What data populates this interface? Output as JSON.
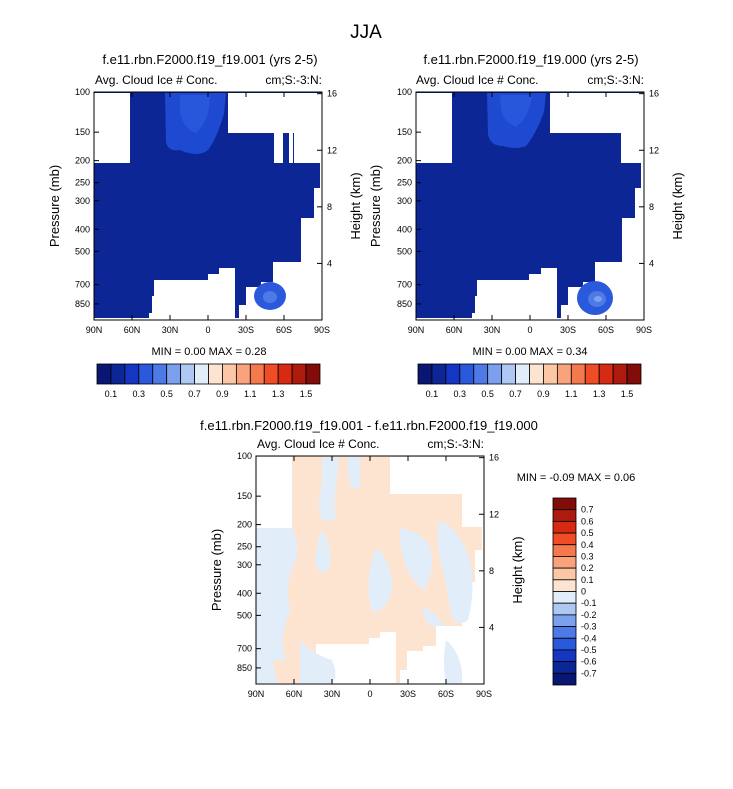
{
  "page": {
    "title": "JJA"
  },
  "colors": {
    "background": "#ffffff",
    "missing": "#ffffff",
    "frame": "#000000",
    "abs_scale": [
      "#0a1673",
      "#0c2696",
      "#1436c2",
      "#2a59dc",
      "#4d7ae6",
      "#7ba0ee",
      "#afc8f3",
      "#e2edfa",
      "#fde4d0",
      "#fbc7a7",
      "#f8a37c",
      "#f47a4d",
      "#ee4d26",
      "#d62b12",
      "#ad1a0e",
      "#820c08"
    ],
    "diff_scale": [
      "#0a1673",
      "#0c2696",
      "#1436c2",
      "#2a59dc",
      "#4d7ae6",
      "#7ba0ee",
      "#afc8f3",
      "#e2edfa",
      "#fde4d0",
      "#fbc7a7",
      "#f8a37c",
      "#f47a4d",
      "#ee4d26",
      "#d62b12",
      "#ad1a0e",
      "#820c08"
    ]
  },
  "chart_data": [
    {
      "id": "panel-left",
      "type": "heatmap",
      "title": "f.e11.rbn.F2000.f19_f19.001 (yrs 2-5)",
      "subtitle_left": "Avg. Cloud Ice # Conc.",
      "subtitle_right": "cm;S:-3:N:",
      "xlabel": "",
      "ylabel": "Pressure (mb)",
      "ylabel_right": "Height (km)",
      "x_ticks": [
        "90N",
        "60N",
        "30N",
        "0",
        "30S",
        "60S",
        "90S"
      ],
      "x_tick_values": [
        90,
        60,
        30,
        0,
        -30,
        -60,
        -90
      ],
      "y_ticks": [
        "100",
        "150",
        "200",
        "250",
        "300",
        "400",
        "500",
        "700",
        "850"
      ],
      "y_tick_values": [
        100,
        150,
        200,
        250,
        300,
        400,
        500,
        700,
        850
      ],
      "y_right_ticks": [
        "16",
        "12",
        "8",
        "4"
      ],
      "y_right_values": [
        16,
        12,
        8,
        4
      ],
      "ylim": [
        100,
        1000
      ],
      "xlim": [
        90,
        -90
      ],
      "y_scale": "log",
      "stats": "MIN =  0.00  MAX =  0.28",
      "min": 0.0,
      "max": 0.28,
      "dominant_level": 0.1,
      "features": [
        {
          "name": "tropical-upper-max",
          "lat": 20,
          "p": 125,
          "value": 0.2
        },
        {
          "name": "southern-midlat-low-max",
          "lat": -54,
          "p": 730,
          "value": 0.28
        }
      ]
    },
    {
      "id": "panel-right",
      "type": "heatmap",
      "title": "f.e11.rbn.F2000.f19_f19.000 (yrs 2-5)",
      "subtitle_left": "Avg. Cloud Ice # Conc.",
      "subtitle_right": "cm;S:-3:N:",
      "xlabel": "",
      "ylabel": "Pressure (mb)",
      "ylabel_right": "Height (km)",
      "x_ticks": [
        "90N",
        "60N",
        "30N",
        "0",
        "30S",
        "60S",
        "90S"
      ],
      "x_tick_values": [
        90,
        60,
        30,
        0,
        -30,
        -60,
        -90
      ],
      "y_ticks": [
        "100",
        "150",
        "200",
        "250",
        "300",
        "400",
        "500",
        "700",
        "850"
      ],
      "y_tick_values": [
        100,
        150,
        200,
        250,
        300,
        400,
        500,
        700,
        850
      ],
      "y_right_ticks": [
        "16",
        "12",
        "8",
        "4"
      ],
      "y_right_values": [
        16,
        12,
        8,
        4
      ],
      "ylim": [
        100,
        1000
      ],
      "xlim": [
        90,
        -90
      ],
      "y_scale": "log",
      "stats": "MIN =  0.00  MAX =  0.34",
      "min": 0.0,
      "max": 0.34,
      "dominant_level": 0.1,
      "features": [
        {
          "name": "tropical-upper-max",
          "lat": 18,
          "p": 125,
          "value": 0.2
        },
        {
          "name": "southern-midlat-low-max",
          "lat": -53,
          "p": 710,
          "value": 0.34
        }
      ]
    },
    {
      "id": "panel-diff",
      "type": "heatmap",
      "title": "f.e11.rbn.F2000.f19_f19.001 - f.e11.rbn.F2000.f19_f19.000",
      "subtitle_left": "Avg. Cloud Ice # Conc.",
      "subtitle_right": "cm;S:-3:N:",
      "xlabel": "",
      "ylabel": "Pressure (mb)",
      "ylabel_right": "Height (km)",
      "x_ticks": [
        "90N",
        "60N",
        "30N",
        "0",
        "30S",
        "60S",
        "90S"
      ],
      "x_tick_values": [
        90,
        60,
        30,
        0,
        -30,
        -60,
        -90
      ],
      "y_ticks": [
        "100",
        "150",
        "200",
        "250",
        "300",
        "400",
        "500",
        "700",
        "850"
      ],
      "y_tick_values": [
        100,
        150,
        200,
        250,
        300,
        400,
        500,
        700,
        850
      ],
      "y_right_ticks": [
        "16",
        "12",
        "8",
        "4"
      ],
      "y_right_values": [
        16,
        12,
        8,
        4
      ],
      "ylim": [
        100,
        1000
      ],
      "xlim": [
        90,
        -90
      ],
      "y_scale": "log",
      "stats": "MIN =  -0.09  MAX =   0.06",
      "min": -0.09,
      "max": 0.06,
      "dominant_levels": [
        0.05,
        -0.05
      ]
    }
  ],
  "colorbars": {
    "abs": {
      "labels": [
        "0.1",
        "0.3",
        "0.5",
        "0.7",
        "0.9",
        "1.1",
        "1.3",
        "1.5"
      ],
      "levels": [
        0.1,
        0.2,
        0.3,
        0.4,
        0.5,
        0.6,
        0.7,
        0.8,
        0.9,
        1.0,
        1.1,
        1.2,
        1.3,
        1.4,
        1.5
      ]
    },
    "diff": {
      "labels": [
        "0.7",
        "0.6",
        "0.5",
        "0.4",
        "0.3",
        "0.2",
        "0.1",
        "0",
        "-0.1",
        "-0.2",
        "-0.3",
        "-0.4",
        "-0.5",
        "-0.6",
        "-0.7"
      ],
      "levels": [
        0.7,
        0.6,
        0.5,
        0.4,
        0.3,
        0.2,
        0.1,
        0,
        -0.1,
        -0.2,
        -0.3,
        -0.4,
        -0.5,
        -0.6,
        -0.7
      ]
    }
  }
}
